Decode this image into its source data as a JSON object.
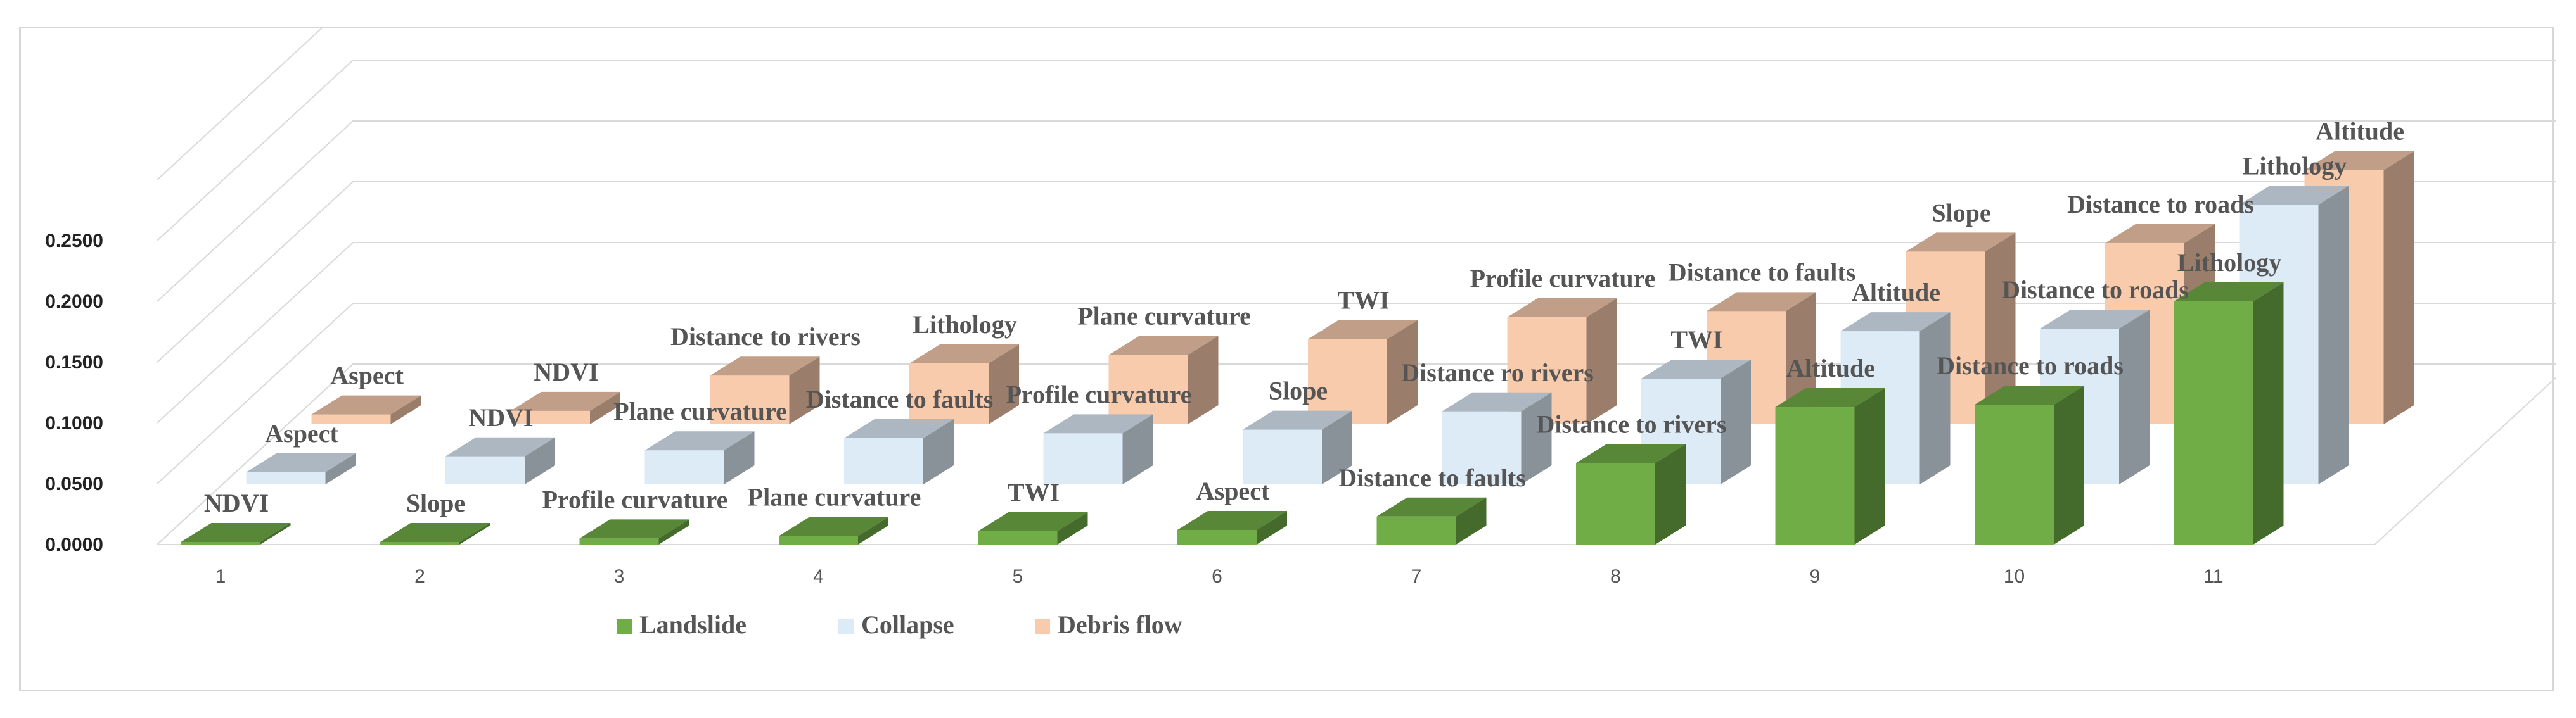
{
  "chart_data": {
    "type": "bar",
    "style": "3d-clustered-depth",
    "categories": [
      "1",
      "2",
      "3",
      "4",
      "5",
      "6",
      "7",
      "8",
      "9",
      "10",
      "11"
    ],
    "ylim": [
      0,
      0.25
    ],
    "yticks": [
      "0.0000",
      "0.0500",
      "0.1000",
      "0.1500",
      "0.2000",
      "0.2500"
    ],
    "grid": true,
    "legend_position": "bottom",
    "series": [
      {
        "name": "Landslide",
        "color": "#70ad47",
        "values": [
          0.001,
          0.001,
          0.005,
          0.007,
          0.011,
          0.012,
          0.023,
          0.067,
          0.113,
          0.115,
          0.2
        ],
        "labels": [
          "NDVI",
          "Slope",
          "Profile curvature",
          "Plane curvature",
          "TWI",
          "Aspect",
          "Distance to faults",
          "Distance to rivers",
          "Altitude",
          "Distance to roads",
          "Lithology"
        ]
      },
      {
        "name": "Collapse",
        "color": "#ddebf7",
        "values": [
          0.01,
          0.023,
          0.028,
          0.038,
          0.042,
          0.045,
          0.06,
          0.087,
          0.126,
          0.128,
          0.23
        ],
        "labels": [
          "Aspect",
          "NDVI",
          "Plane curvature",
          "Distance to faults",
          "Profile curvature",
          "Slope",
          "Distance ro rivers",
          "TWI",
          "Altitude",
          "Distance to roads",
          "Lithology"
        ]
      },
      {
        "name": "Debris flow",
        "color": "#f8cbad",
        "values": [
          0.008,
          0.011,
          0.04,
          0.05,
          0.057,
          0.07,
          0.088,
          0.093,
          0.142,
          0.149,
          0.209
        ],
        "labels": [
          "Aspect",
          "NDVI",
          "Distance to rivers",
          "Lithology",
          "Plane curvature",
          "TWI",
          "Profile curvature",
          "Distance to faults",
          "Slope",
          "Distance to roads",
          "Altitude"
        ]
      }
    ]
  }
}
